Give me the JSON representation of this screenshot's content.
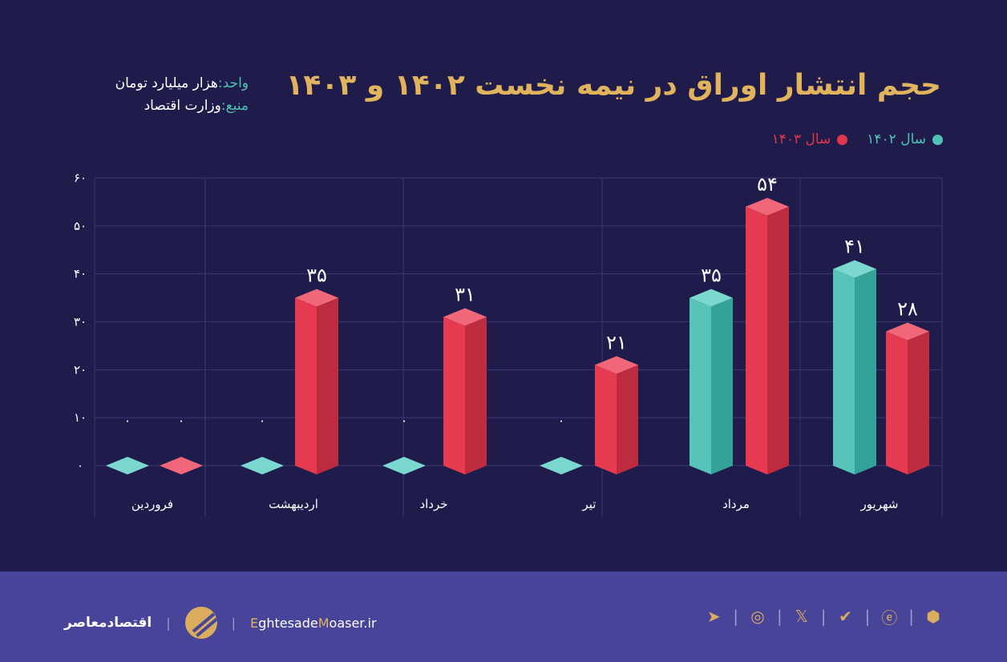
{
  "title": "حجم انتشار اوراق در نیمه نخست ۱۴۰۲ و ۱۴۰۳",
  "meta": {
    "unit_label": "واحد:",
    "unit_value": "هزار میلیارد تومان",
    "source_label": "منبع:",
    "source_value": "وزارت اقتصاد"
  },
  "colors": {
    "series_1402": "#4fc1b5",
    "series_1403": "#e0374b",
    "title": "#e0b35c",
    "background": "#1f1c4c",
    "footer": "#47449a"
  },
  "chart_data": {
    "type": "bar",
    "categories": [
      "فروردین",
      "اردیبهشت",
      "خرداد",
      "تیر",
      "مرداد",
      "شهریور"
    ],
    "series": [
      {
        "name": "سال ۱۴۰۲",
        "values": [
          0,
          0,
          0,
          0,
          35,
          41
        ]
      },
      {
        "name": "سال ۱۴۰۳",
        "values": [
          0,
          35,
          31,
          21,
          54,
          28
        ]
      }
    ],
    "yticks": [
      "۰",
      "۱۰",
      "۲۰",
      "۳۰",
      "۴۰",
      "۵۰",
      "۶۰"
    ],
    "ylim": [
      0,
      60
    ],
    "grid": true,
    "legend": "top-right",
    "direction": "rtl"
  },
  "footer": {
    "brand_name": "اقتصادمعاصر",
    "site_prefix": "E",
    "site_mid1": "ghtesade",
    "site_m": "M",
    "site_rest": "oaser.ir",
    "icons": [
      "telegram-icon",
      "instagram-icon",
      "x-icon",
      "eitaa-icon",
      "bale-icon",
      "rubika-icon"
    ]
  }
}
